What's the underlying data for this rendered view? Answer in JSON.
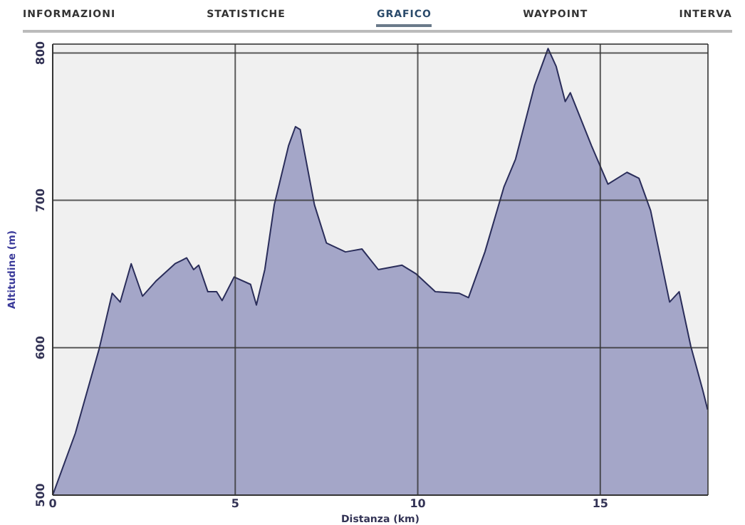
{
  "chart_data": {
    "type": "area",
    "xlabel": "Distanza (km)",
    "ylabel": "Altitudine (m)",
    "annotations": [
      "INFORMAZIONI",
      "STATISTICHE",
      "GRAFICO",
      "WAYPOINT",
      "INTERVA"
    ],
    "xlim": [
      0,
      17.95
    ],
    "xticks": [
      0,
      5,
      10,
      15
    ],
    "ylim": [
      500,
      806
    ],
    "yticks": [
      500,
      600,
      700,
      800
    ],
    "grid": true,
    "series": [
      {
        "color": "#a4a6c8",
        "x": [
          0,
          0.62,
          0.95,
          1.27,
          1.63,
          1.85,
          2.15,
          2.46,
          2.82,
          3.35,
          3.67,
          3.86,
          4.0,
          4.25,
          4.49,
          4.64,
          4.97,
          5.42,
          5.58,
          5.81,
          6.07,
          6.46,
          6.65,
          6.78,
          7.17,
          7.5,
          8.02,
          8.47,
          8.92,
          9.57,
          9.96,
          10.48,
          11.13,
          11.39,
          11.84,
          12.36,
          12.68,
          13.2,
          13.57,
          13.79,
          14.04,
          14.18,
          14.76,
          15.21,
          15.73,
          16.06,
          16.38,
          16.9,
          17.16,
          17.48,
          17.81,
          17.94
        ],
        "values": [
          500,
          542,
          571,
          599,
          637,
          631,
          657,
          635,
          645,
          657,
          661,
          653,
          656,
          638,
          638,
          632,
          648,
          643,
          629,
          653,
          697,
          737,
          750,
          748,
          697,
          671,
          665,
          667,
          653,
          656,
          650,
          638,
          637,
          634,
          665,
          709,
          728,
          778,
          803,
          791,
          767,
          773,
          737,
          711,
          719,
          715,
          693,
          631,
          638,
          601,
          571,
          558
        ]
      }
    ]
  }
}
